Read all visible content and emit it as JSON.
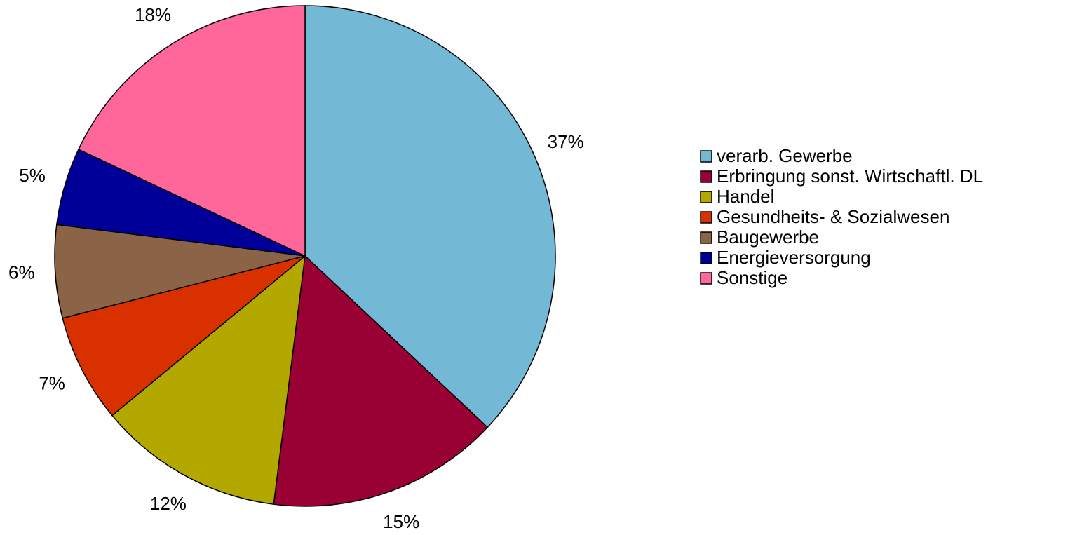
{
  "chart_data": {
    "type": "pie",
    "categories": [
      "verarb. Gewerbe",
      "Erbringung sonst. Wirtschaftl. DL",
      "Handel",
      "Gesundheits- & Sozialwesen",
      "Baugewerbe",
      "Energieversorgung",
      "Sonstige"
    ],
    "values": [
      37,
      15,
      12,
      7,
      6,
      5,
      18
    ],
    "value_labels": [
      "37%",
      "15%",
      "12%",
      "7%",
      "6%",
      "5%",
      "18%"
    ],
    "colors": [
      "#73b8d4",
      "#990033",
      "#b3a800",
      "#d93000",
      "#8b6347",
      "#000099",
      "#ff6699"
    ],
    "legend": "right"
  }
}
